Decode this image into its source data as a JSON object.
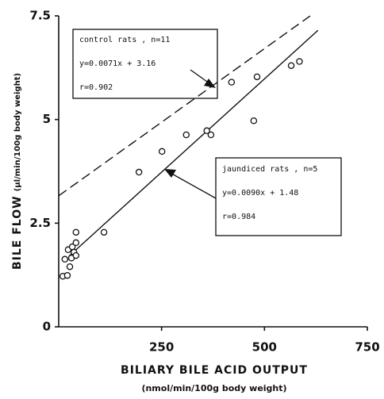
{
  "chart_data": {
    "type": "scatter",
    "xlabel": "BILIARY BILE ACID OUTPUT",
    "xlabel_units": "(nmol/min/100g body weight)",
    "ylabel": "BILE FLOW",
    "ylabel_units": "(µl/min/100g body weight)",
    "xlim": [
      0,
      750
    ],
    "xticks": [
      250,
      500,
      750
    ],
    "ylim": [
      0,
      7.5
    ],
    "yticks": [
      0,
      2.5,
      5,
      7.5
    ],
    "x": [
      10,
      15,
      21,
      23,
      27,
      31,
      33,
      37,
      42,
      42,
      42,
      110,
      195,
      251,
      310,
      360,
      370,
      420,
      474,
      482,
      565,
      585
    ],
    "y": [
      1.22,
      1.63,
      1.24,
      1.86,
      1.45,
      1.66,
      1.93,
      1.8,
      1.72,
      2.03,
      2.28,
      2.28,
      3.73,
      4.23,
      4.63,
      4.73,
      4.63,
      5.9,
      4.97,
      6.03,
      6.3,
      6.4
    ],
    "color": "#111111",
    "lines": [
      {
        "slope": 0.0071,
        "intercept": 3.16,
        "x_extent": [
          0,
          611
        ],
        "style": "dashed",
        "texts": [
          "control rats , n=11",
          "y=0.0071x + 3.16",
          "r=0.902"
        ]
      },
      {
        "slope": 0.009,
        "intercept": 1.48,
        "x_extent": [
          25,
          630
        ],
        "style": "solid",
        "texts": [
          "jaundiced rats , n=5",
          "y=0.0090x + 1.48",
          "r=0.984"
        ]
      }
    ]
  }
}
